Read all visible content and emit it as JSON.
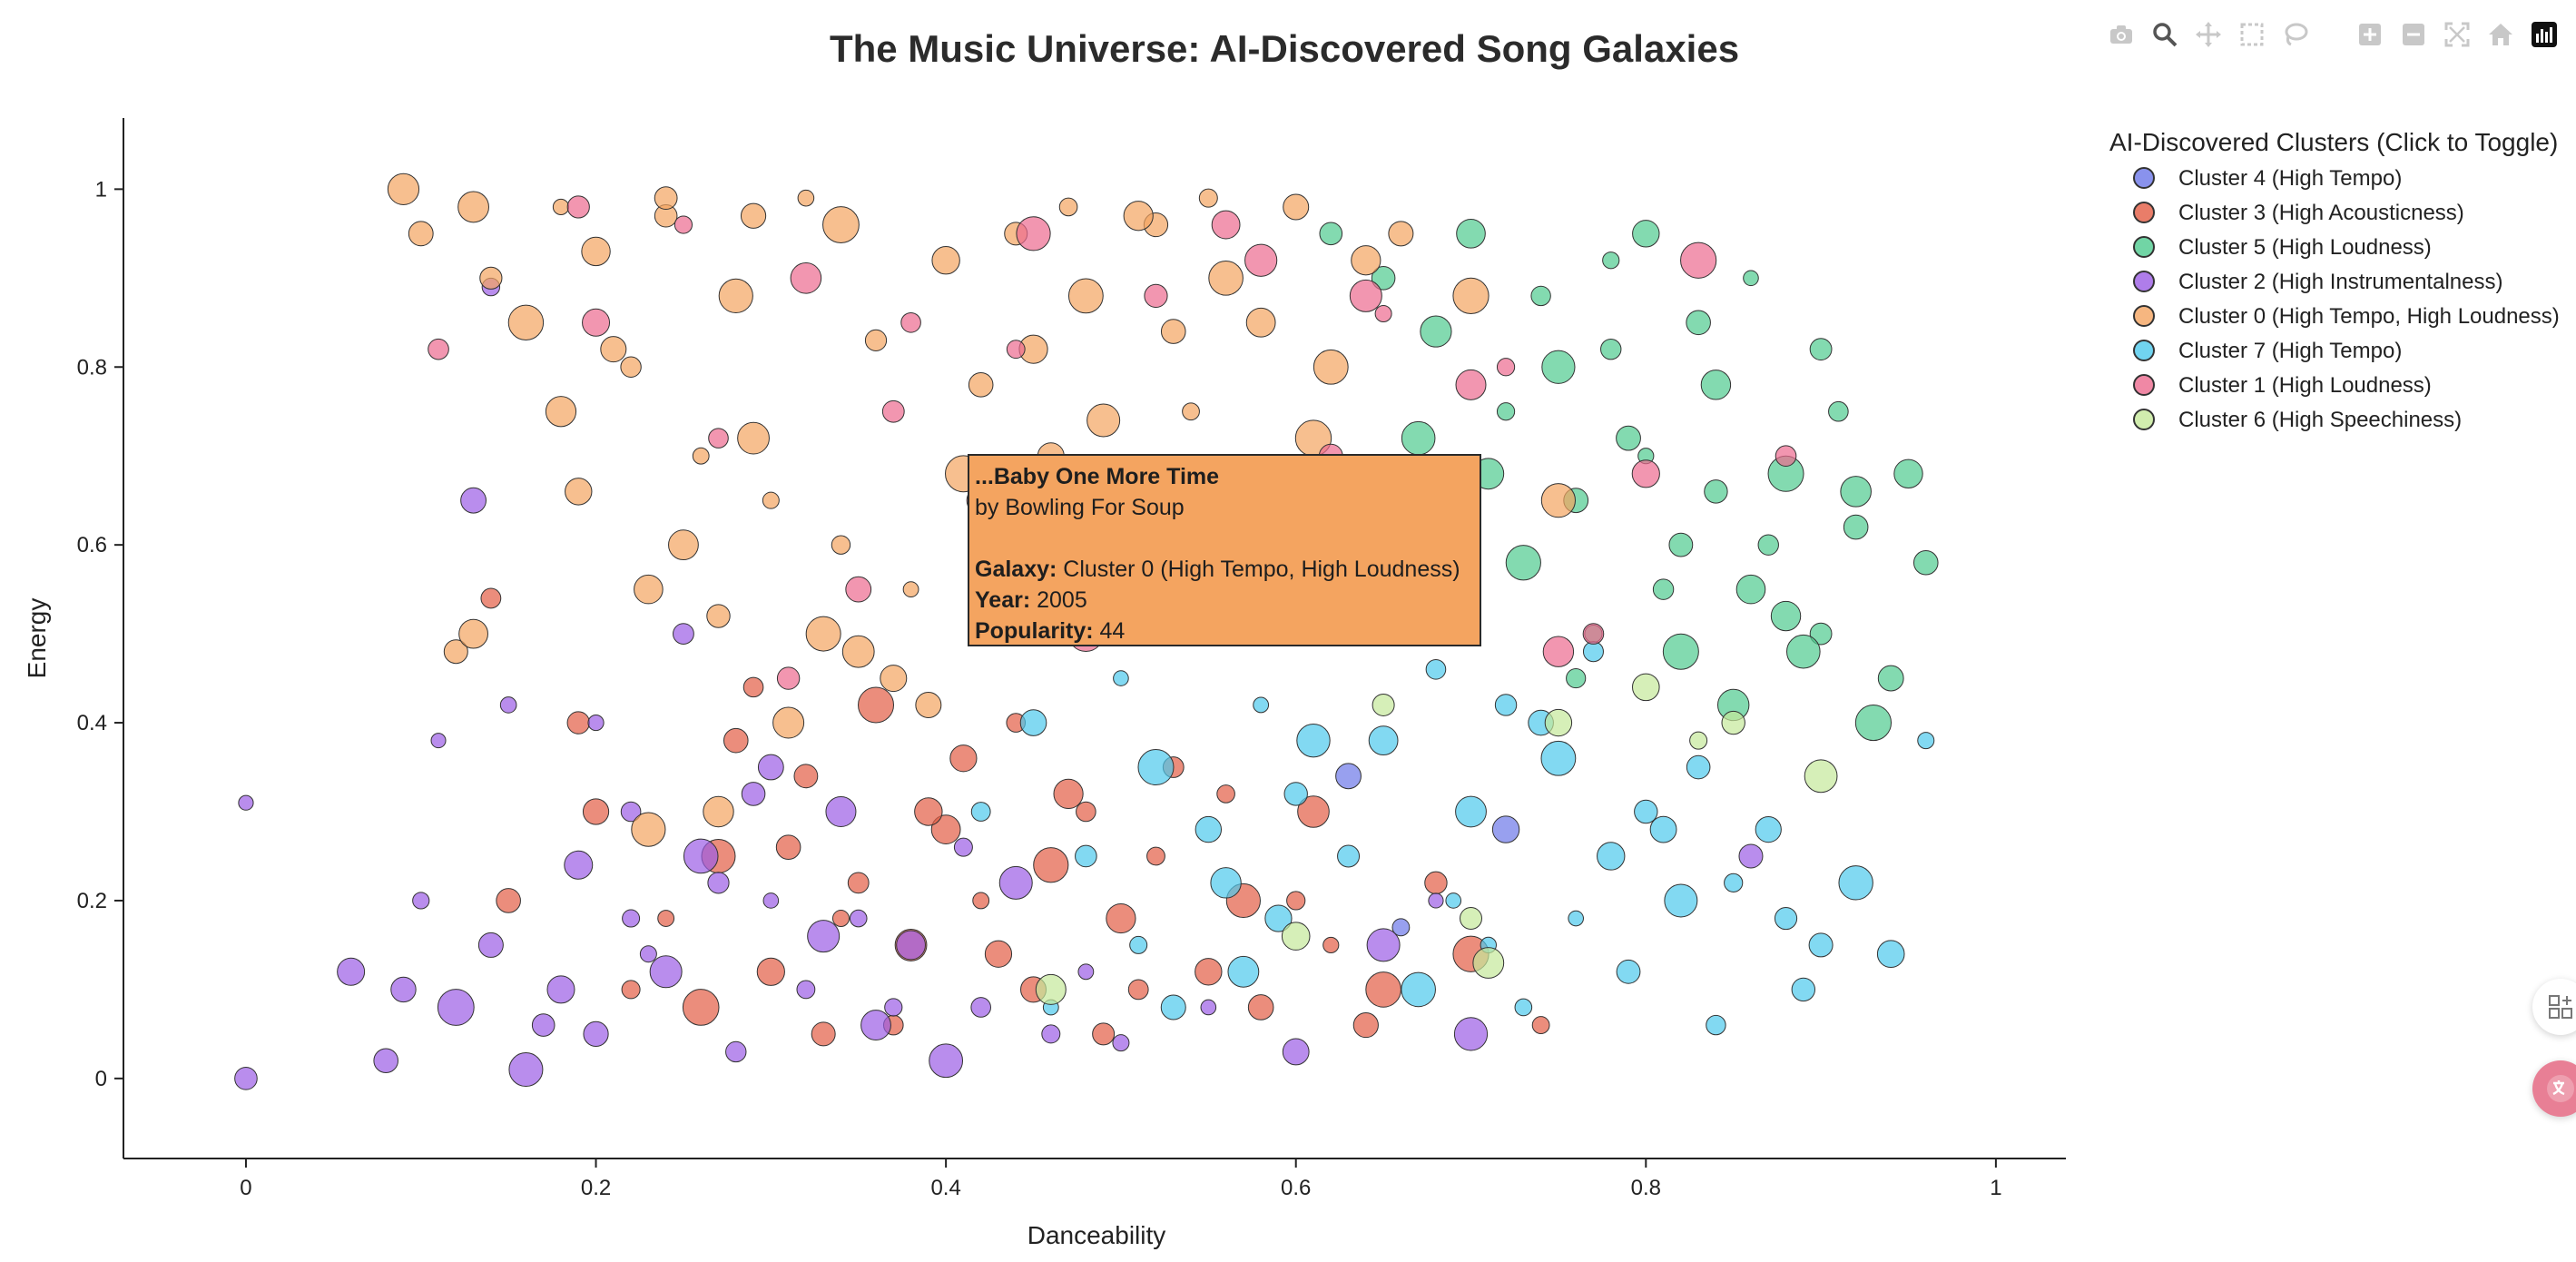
{
  "chart_data": {
    "type": "scatter",
    "title": "The Music Universe: AI-Discovered Song Galaxies",
    "xlabel": "Danceability",
    "ylabel": "Energy",
    "xlim": [
      -0.07,
      1.04
    ],
    "ylim": [
      -0.09,
      1.08
    ],
    "x_ticks": [
      0,
      0.2,
      0.4,
      0.6,
      0.8,
      1
    ],
    "x_tick_labels": [
      "0",
      "0.2",
      "0.4",
      "0.6",
      "0.8",
      "1"
    ],
    "y_ticks": [
      0,
      0.2,
      0.4,
      0.6,
      0.8,
      1
    ],
    "y_tick_labels": [
      "0",
      "0.2",
      "0.4",
      "0.6",
      "0.8",
      "1"
    ],
    "grid": false,
    "legend": {
      "title": "AI-Discovered Clusters (Click to Toggle)",
      "placement": "top-right"
    },
    "series": [
      {
        "name": "Cluster 4 (High Tempo)",
        "color": "#6c77e8",
        "x": [
          0.63,
          0.72,
          0.66
        ],
        "y": [
          0.34,
          0.28,
          0.17
        ]
      },
      {
        "name": "Cluster 3 (High Acousticness)",
        "color": "#e35d44",
        "x": [
          0.14,
          0.15,
          0.2,
          0.24,
          0.27,
          0.3,
          0.32,
          0.35,
          0.38,
          0.4,
          0.42,
          0.45,
          0.48,
          0.5,
          0.52,
          0.55,
          0.58,
          0.6,
          0.62,
          0.65,
          0.7,
          0.74,
          0.28,
          0.36,
          0.44,
          0.33,
          0.41,
          0.47,
          0.53,
          0.22,
          0.26,
          0.31,
          0.37,
          0.43,
          0.49,
          0.56,
          0.61,
          0.68,
          0.19,
          0.34,
          0.46,
          0.51,
          0.57,
          0.64,
          0.29,
          0.39
        ],
        "y": [
          0.54,
          0.2,
          0.3,
          0.18,
          0.25,
          0.12,
          0.34,
          0.22,
          0.15,
          0.28,
          0.2,
          0.1,
          0.3,
          0.18,
          0.25,
          0.12,
          0.08,
          0.2,
          0.15,
          0.1,
          0.14,
          0.06,
          0.38,
          0.42,
          0.4,
          0.05,
          0.36,
          0.32,
          0.35,
          0.1,
          0.08,
          0.26,
          0.06,
          0.14,
          0.05,
          0.32,
          0.3,
          0.22,
          0.4,
          0.18,
          0.24,
          0.1,
          0.2,
          0.06,
          0.44,
          0.3
        ]
      },
      {
        "name": "Cluster 5 (High Loudness)",
        "color": "#4ecb8e",
        "x": [
          0.65,
          0.68,
          0.7,
          0.72,
          0.74,
          0.76,
          0.78,
          0.8,
          0.82,
          0.84,
          0.86,
          0.88,
          0.9,
          0.92,
          0.94,
          0.96,
          0.75,
          0.79,
          0.83,
          0.87,
          0.91,
          0.71,
          0.77,
          0.81,
          0.85,
          0.89,
          0.93,
          0.73,
          0.67,
          0.69,
          0.95,
          0.8,
          0.86,
          0.9,
          0.62,
          0.76,
          0.84,
          0.88,
          0.92,
          0.78,
          0.82
        ],
        "y": [
          0.9,
          0.84,
          0.95,
          0.75,
          0.88,
          0.65,
          0.92,
          0.7,
          0.6,
          0.78,
          0.55,
          0.68,
          0.5,
          0.62,
          0.45,
          0.58,
          0.8,
          0.72,
          0.85,
          0.6,
          0.75,
          0.68,
          0.5,
          0.55,
          0.42,
          0.48,
          0.4,
          0.58,
          0.72,
          0.62,
          0.68,
          0.95,
          0.9,
          0.82,
          0.95,
          0.45,
          0.66,
          0.52,
          0.66,
          0.82,
          0.48
        ]
      },
      {
        "name": "Cluster 2 (High Instrumentalness)",
        "color": "#9b5de5",
        "x": [
          0.0,
          0.0,
          0.06,
          0.08,
          0.1,
          0.12,
          0.14,
          0.16,
          0.18,
          0.2,
          0.22,
          0.24,
          0.26,
          0.28,
          0.3,
          0.32,
          0.34,
          0.36,
          0.38,
          0.4,
          0.42,
          0.44,
          0.46,
          0.48,
          0.5,
          0.55,
          0.6,
          0.65,
          0.7,
          0.14,
          0.13,
          0.2,
          0.25,
          0.3,
          0.15,
          0.17,
          0.22,
          0.27,
          0.33,
          0.37,
          0.41,
          0.11,
          0.19,
          0.23,
          0.29,
          0.35,
          0.09,
          0.86,
          0.68
        ],
        "y": [
          0.31,
          0.0,
          0.12,
          0.02,
          0.2,
          0.08,
          0.15,
          0.01,
          0.1,
          0.05,
          0.18,
          0.12,
          0.25,
          0.03,
          0.2,
          0.1,
          0.3,
          0.06,
          0.15,
          0.02,
          0.08,
          0.22,
          0.05,
          0.12,
          0.04,
          0.08,
          0.03,
          0.15,
          0.05,
          0.89,
          0.65,
          0.4,
          0.5,
          0.35,
          0.42,
          0.06,
          0.3,
          0.22,
          0.16,
          0.08,
          0.26,
          0.38,
          0.24,
          0.14,
          0.32,
          0.18,
          0.1,
          0.25,
          0.2
        ]
      },
      {
        "name": "Cluster 0 (High Tempo, High Loudness)",
        "color": "#f4a460",
        "x": [
          0.09,
          0.1,
          0.13,
          0.14,
          0.16,
          0.18,
          0.2,
          0.22,
          0.24,
          0.26,
          0.28,
          0.3,
          0.32,
          0.34,
          0.36,
          0.38,
          0.4,
          0.42,
          0.44,
          0.46,
          0.48,
          0.5,
          0.52,
          0.54,
          0.56,
          0.58,
          0.6,
          0.62,
          0.64,
          0.66,
          0.7,
          0.75,
          0.12,
          0.21,
          0.25,
          0.29,
          0.33,
          0.37,
          0.41,
          0.45,
          0.49,
          0.53,
          0.57,
          0.61,
          0.19,
          0.23,
          0.27,
          0.31,
          0.35,
          0.39,
          0.43,
          0.23,
          0.27,
          0.18,
          0.24,
          0.29,
          0.34,
          0.13,
          0.47,
          0.51,
          0.55
        ],
        "y": [
          1.0,
          0.95,
          0.98,
          0.9,
          0.85,
          0.75,
          0.93,
          0.8,
          0.97,
          0.7,
          0.88,
          0.65,
          0.99,
          0.6,
          0.83,
          0.55,
          0.92,
          0.78,
          0.95,
          0.7,
          0.88,
          0.62,
          0.96,
          0.75,
          0.9,
          0.85,
          0.98,
          0.8,
          0.92,
          0.95,
          0.88,
          0.65,
          0.48,
          0.82,
          0.6,
          0.72,
          0.5,
          0.45,
          0.68,
          0.82,
          0.74,
          0.84,
          0.68,
          0.72,
          0.66,
          0.55,
          0.52,
          0.4,
          0.48,
          0.42,
          0.58,
          0.28,
          0.3,
          0.98,
          0.99,
          0.97,
          0.96,
          0.5,
          0.98,
          0.97,
          0.99
        ]
      },
      {
        "name": "Cluster 7 (High Tempo)",
        "color": "#4dc9ec",
        "x": [
          0.42,
          0.45,
          0.48,
          0.5,
          0.52,
          0.55,
          0.58,
          0.6,
          0.62,
          0.65,
          0.68,
          0.7,
          0.72,
          0.75,
          0.78,
          0.8,
          0.82,
          0.85,
          0.88,
          0.9,
          0.92,
          0.94,
          0.96,
          0.66,
          0.74,
          0.77,
          0.83,
          0.87,
          0.63,
          0.69,
          0.71,
          0.57,
          0.53,
          0.59,
          0.67,
          0.73,
          0.79,
          0.84,
          0.89,
          0.46,
          0.51,
          0.56,
          0.61,
          0.76,
          0.81
        ],
        "y": [
          0.3,
          0.4,
          0.25,
          0.45,
          0.35,
          0.28,
          0.42,
          0.32,
          0.5,
          0.38,
          0.46,
          0.3,
          0.42,
          0.36,
          0.25,
          0.3,
          0.2,
          0.22,
          0.18,
          0.15,
          0.22,
          0.14,
          0.38,
          0.55,
          0.4,
          0.48,
          0.35,
          0.28,
          0.25,
          0.2,
          0.15,
          0.12,
          0.08,
          0.18,
          0.1,
          0.08,
          0.12,
          0.06,
          0.1,
          0.08,
          0.15,
          0.22,
          0.38,
          0.18,
          0.28
        ]
      },
      {
        "name": "Cluster 1 (High Loudness)",
        "color": "#ec6a8f",
        "x": [
          0.11,
          0.19,
          0.27,
          0.32,
          0.35,
          0.38,
          0.42,
          0.45,
          0.48,
          0.52,
          0.55,
          0.58,
          0.62,
          0.65,
          0.68,
          0.72,
          0.75,
          0.8,
          0.83,
          0.88,
          0.31,
          0.37,
          0.44,
          0.5,
          0.56,
          0.64,
          0.7,
          0.77,
          0.2,
          0.25
        ],
        "y": [
          0.82,
          0.98,
          0.72,
          0.9,
          0.55,
          0.85,
          0.65,
          0.95,
          0.5,
          0.88,
          0.6,
          0.92,
          0.7,
          0.86,
          0.55,
          0.8,
          0.48,
          0.68,
          0.92,
          0.7,
          0.45,
          0.75,
          0.82,
          0.62,
          0.96,
          0.88,
          0.78,
          0.5,
          0.85,
          0.96
        ]
      },
      {
        "name": "Cluster 6 (High Speechiness)",
        "color": "#c5e89a",
        "x": [
          0.46,
          0.54,
          0.6,
          0.65,
          0.7,
          0.75,
          0.8,
          0.83,
          0.85,
          0.9,
          0.71
        ],
        "y": [
          0.1,
          0.52,
          0.16,
          0.42,
          0.18,
          0.4,
          0.44,
          0.38,
          0.4,
          0.34,
          0.13
        ]
      }
    ]
  },
  "hover": {
    "song": "...Baby One More Time",
    "artist": "by Bowling For Soup",
    "galaxy_label": "Galaxy:",
    "galaxy_value": "Cluster 0 (High Tempo, High Loudness)",
    "year_label": "Year:",
    "year_value": "2005",
    "popularity_label": "Popularity:",
    "popularity_value": "44",
    "color": "#f4a460"
  },
  "modebar": [
    "camera-icon",
    "zoom-icon",
    "pan-icon",
    "box-select-icon",
    "lasso-icon",
    "zoom-in-icon",
    "zoom-out-icon",
    "autoscale-icon",
    "reset-icon",
    "plotly-logo-icon"
  ]
}
